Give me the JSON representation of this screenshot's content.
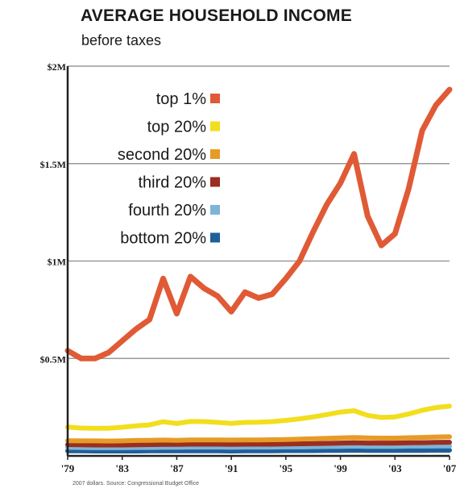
{
  "chart_data": {
    "type": "line",
    "title": "AVERAGE HOUSEHOLD INCOME",
    "subtitle": "before taxes",
    "source_note": "2007 dollars. Source: Congressional Budget Office",
    "y_ticks": [
      {
        "value": 2000000,
        "label": "$2M"
      },
      {
        "value": 1500000,
        "label": "$1.5M"
      },
      {
        "value": 1000000,
        "label": "$1M"
      },
      {
        "value": 500000,
        "label": "$0.5M"
      }
    ],
    "ylim": [
      0,
      2000000
    ],
    "xlim": [
      1979,
      2007
    ],
    "x_ticks": [
      {
        "value": 1979,
        "label": "'79"
      },
      {
        "value": 1983,
        "label": "'83"
      },
      {
        "value": 1987,
        "label": "'87"
      },
      {
        "value": 1991,
        "label": "'91"
      },
      {
        "value": 1995,
        "label": "'95"
      },
      {
        "value": 1999,
        "label": "'99"
      },
      {
        "value": 2003,
        "label": "'03"
      },
      {
        "value": 2007,
        "label": "'07"
      }
    ],
    "grid": "horizontal",
    "legend_position": "top-left",
    "x": [
      1979,
      1980,
      1981,
      1982,
      1983,
      1984,
      1985,
      1986,
      1987,
      1988,
      1989,
      1990,
      1991,
      1992,
      1993,
      1994,
      1995,
      1996,
      1997,
      1998,
      1999,
      2000,
      2001,
      2002,
      2003,
      2004,
      2005,
      2006,
      2007
    ],
    "series": [
      {
        "name": "top 1%",
        "color": "#e05a35",
        "values": [
          540000,
          500000,
          500000,
          530000,
          590000,
          650000,
          700000,
          910000,
          730000,
          920000,
          860000,
          820000,
          740000,
          840000,
          810000,
          830000,
          910000,
          1000000,
          1150000,
          1290000,
          1400000,
          1550000,
          1230000,
          1080000,
          1140000,
          1370000,
          1670000,
          1800000,
          1880000
        ]
      },
      {
        "name": "top 20%",
        "color": "#f2de1d",
        "values": [
          148000,
          143000,
          141000,
          142000,
          147000,
          154000,
          159000,
          175000,
          166000,
          177000,
          176000,
          172000,
          167000,
          172000,
          173000,
          176000,
          182000,
          190000,
          200000,
          212000,
          225000,
          232000,
          208000,
          197000,
          200000,
          215000,
          234000,
          248000,
          255000
        ]
      },
      {
        "name": "second 20%",
        "color": "#e79b27",
        "values": [
          78000,
          77000,
          77000,
          76000,
          77000,
          79000,
          80000,
          81000,
          80000,
          82000,
          82000,
          82000,
          81000,
          82000,
          82000,
          83000,
          84000,
          86000,
          88000,
          90000,
          92000,
          94000,
          92000,
          91000,
          91000,
          93000,
          95000,
          97000,
          98000
        ]
      },
      {
        "name": "third 20%",
        "color": "#9a2e20",
        "values": [
          58000,
          57000,
          56000,
          56000,
          56000,
          57000,
          58000,
          59000,
          59000,
          60000,
          60000,
          60000,
          59000,
          60000,
          60000,
          60000,
          61000,
          62000,
          63000,
          64000,
          66000,
          67000,
          66000,
          66000,
          66000,
          67000,
          68000,
          69000,
          70000
        ]
      },
      {
        "name": "fourth 20%",
        "color": "#7fb3d8",
        "values": [
          44000,
          43000,
          42000,
          42000,
          42000,
          43000,
          43000,
          44000,
          44000,
          45000,
          45000,
          45000,
          44000,
          45000,
          45000,
          45000,
          46000,
          46000,
          47000,
          48000,
          49000,
          50000,
          49000,
          49000,
          49000,
          50000,
          50000,
          51000,
          51000
        ]
      },
      {
        "name": "bottom 20%",
        "color": "#1f5f99",
        "values": [
          26000,
          26000,
          25000,
          25000,
          25000,
          25000,
          26000,
          26000,
          26000,
          26000,
          26000,
          26000,
          25000,
          26000,
          26000,
          26000,
          27000,
          27000,
          27000,
          28000,
          28000,
          29000,
          28000,
          28000,
          28000,
          28000,
          28000,
          29000,
          29000
        ]
      }
    ]
  }
}
